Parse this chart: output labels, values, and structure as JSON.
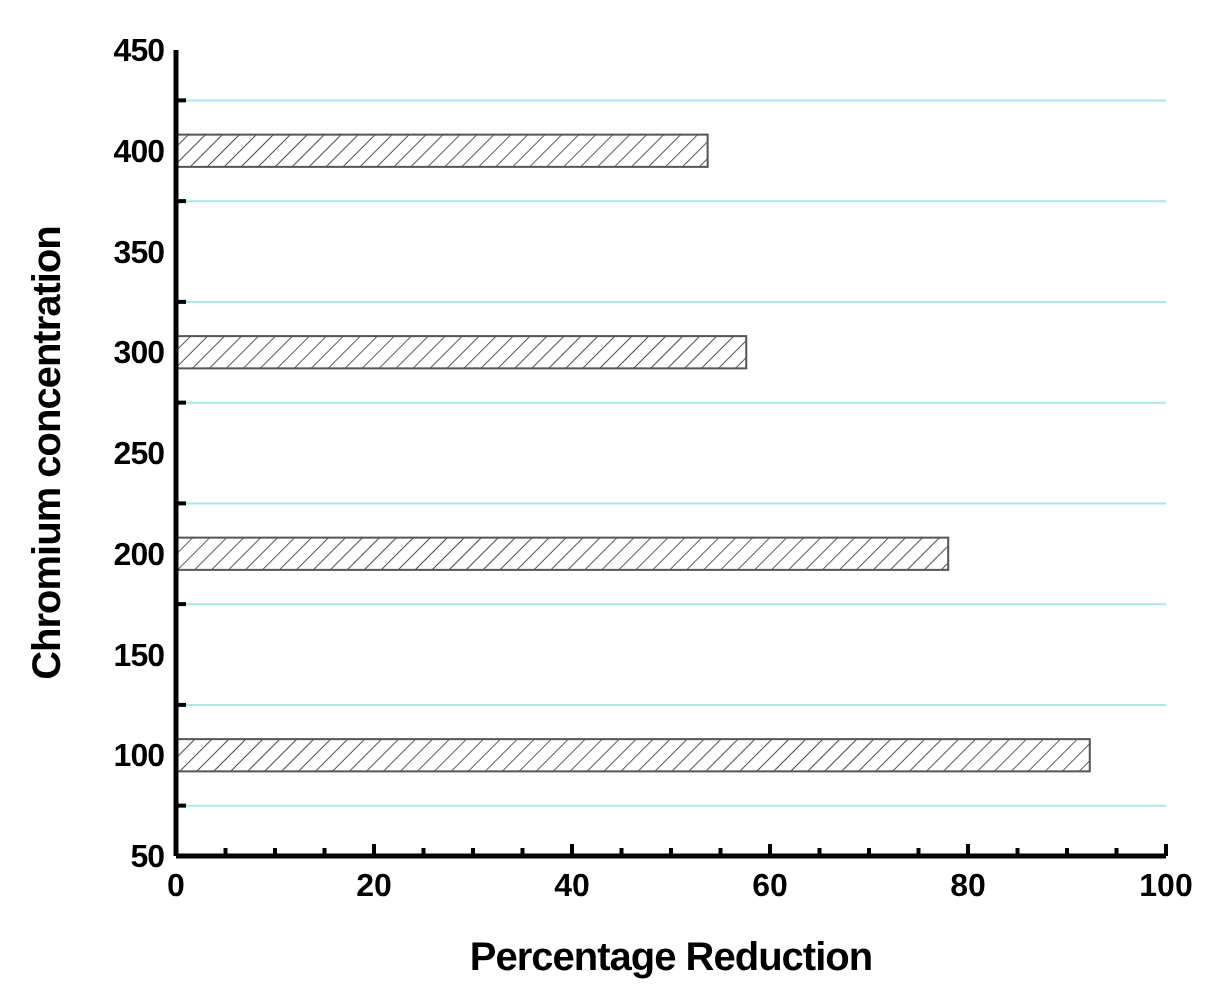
{
  "chart_data": {
    "type": "bar",
    "orientation": "horizontal",
    "xlabel": "Percentage Reduction",
    "ylabel": "Chromium concentration",
    "x": [
      100,
      200,
      300,
      400
    ],
    "values": [
      92.3,
      78.0,
      57.6,
      53.7
    ],
    "color": "#555555",
    "xlim": [
      0,
      100
    ],
    "xticks": [
      0,
      {
        "value": 5,
        "label": null
      },
      {
        "value": 10,
        "label": null
      },
      {
        "value": 15,
        "label": null
      },
      20,
      {
        "value": 25,
        "label": null
      },
      {
        "value": 30,
        "label": null
      },
      {
        "value": 35,
        "label": null
      },
      40,
      {
        "value": 45,
        "label": null
      },
      {
        "value": 50,
        "label": null
      },
      {
        "value": 55,
        "label": null
      },
      60,
      {
        "value": 65,
        "label": null
      },
      {
        "value": 70,
        "label": null
      },
      {
        "value": 75,
        "label": null
      },
      80,
      {
        "value": 85,
        "label": null
      },
      {
        "value": 90,
        "label": null
      },
      {
        "value": 95,
        "label": null
      },
      100
    ],
    "ylim": [
      50,
      450
    ],
    "yticks": [
      50,
      {
        "value": 75,
        "label": null
      },
      100,
      {
        "value": 125,
        "label": null
      },
      150,
      {
        "value": 175,
        "label": null
      },
      200,
      {
        "value": 225,
        "label": null
      },
      250,
      {
        "value": 275,
        "label": null
      },
      300,
      {
        "value": 325,
        "label": null
      },
      350,
      {
        "value": 375,
        "label": null
      },
      400,
      {
        "value": 425,
        "label": null
      },
      450
    ],
    "grid": "y"
  }
}
